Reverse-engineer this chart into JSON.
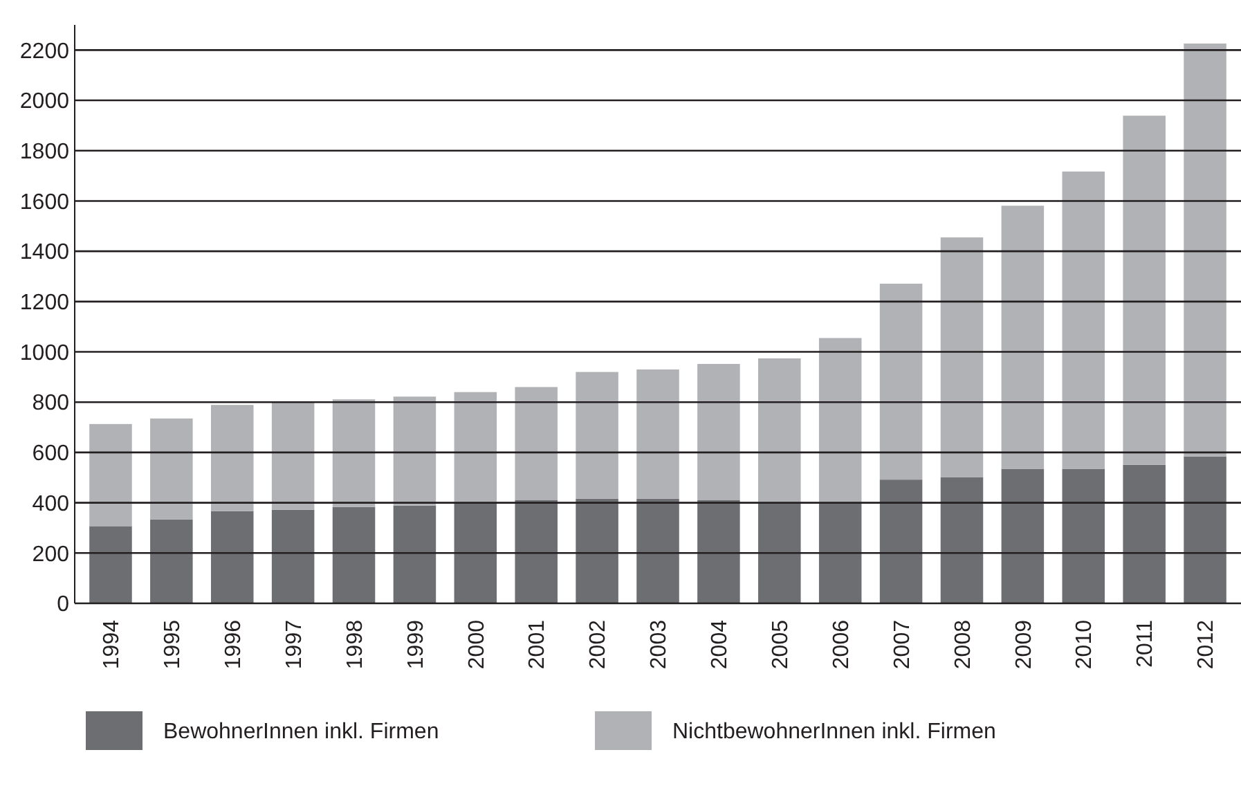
{
  "chart_data": {
    "type": "bar",
    "stacked": true,
    "categories": [
      "1994",
      "1995",
      "1996",
      "1997",
      "1998",
      "1999",
      "2000",
      "2001",
      "2002",
      "2003",
      "2004",
      "2005",
      "2006",
      "2007",
      "2008",
      "2009",
      "2010",
      "2011",
      "2012"
    ],
    "series": [
      {
        "name": "BewohnerInnen inkl. Firmen",
        "color": "#6d6e71",
        "values": [
          307,
          334,
          367,
          372,
          383,
          389,
          399,
          410,
          416,
          416,
          410,
          401,
          401,
          492,
          502,
          535,
          535,
          551,
          584
        ]
      },
      {
        "name": "NichtbewohnerInnen inkl. Firmen",
        "color": "#b1b2b5",
        "values": [
          406,
          401,
          422,
          426,
          428,
          433,
          441,
          450,
          504,
          514,
          542,
          573,
          654,
          779,
          953,
          1046,
          1182,
          1388,
          1642
        ]
      }
    ],
    "ylim": [
      0,
      2300
    ],
    "yticks": [
      0,
      200,
      400,
      600,
      800,
      1000,
      1200,
      1400,
      1600,
      1800,
      2000,
      2200
    ],
    "grid": "y",
    "legend": "bottom"
  }
}
